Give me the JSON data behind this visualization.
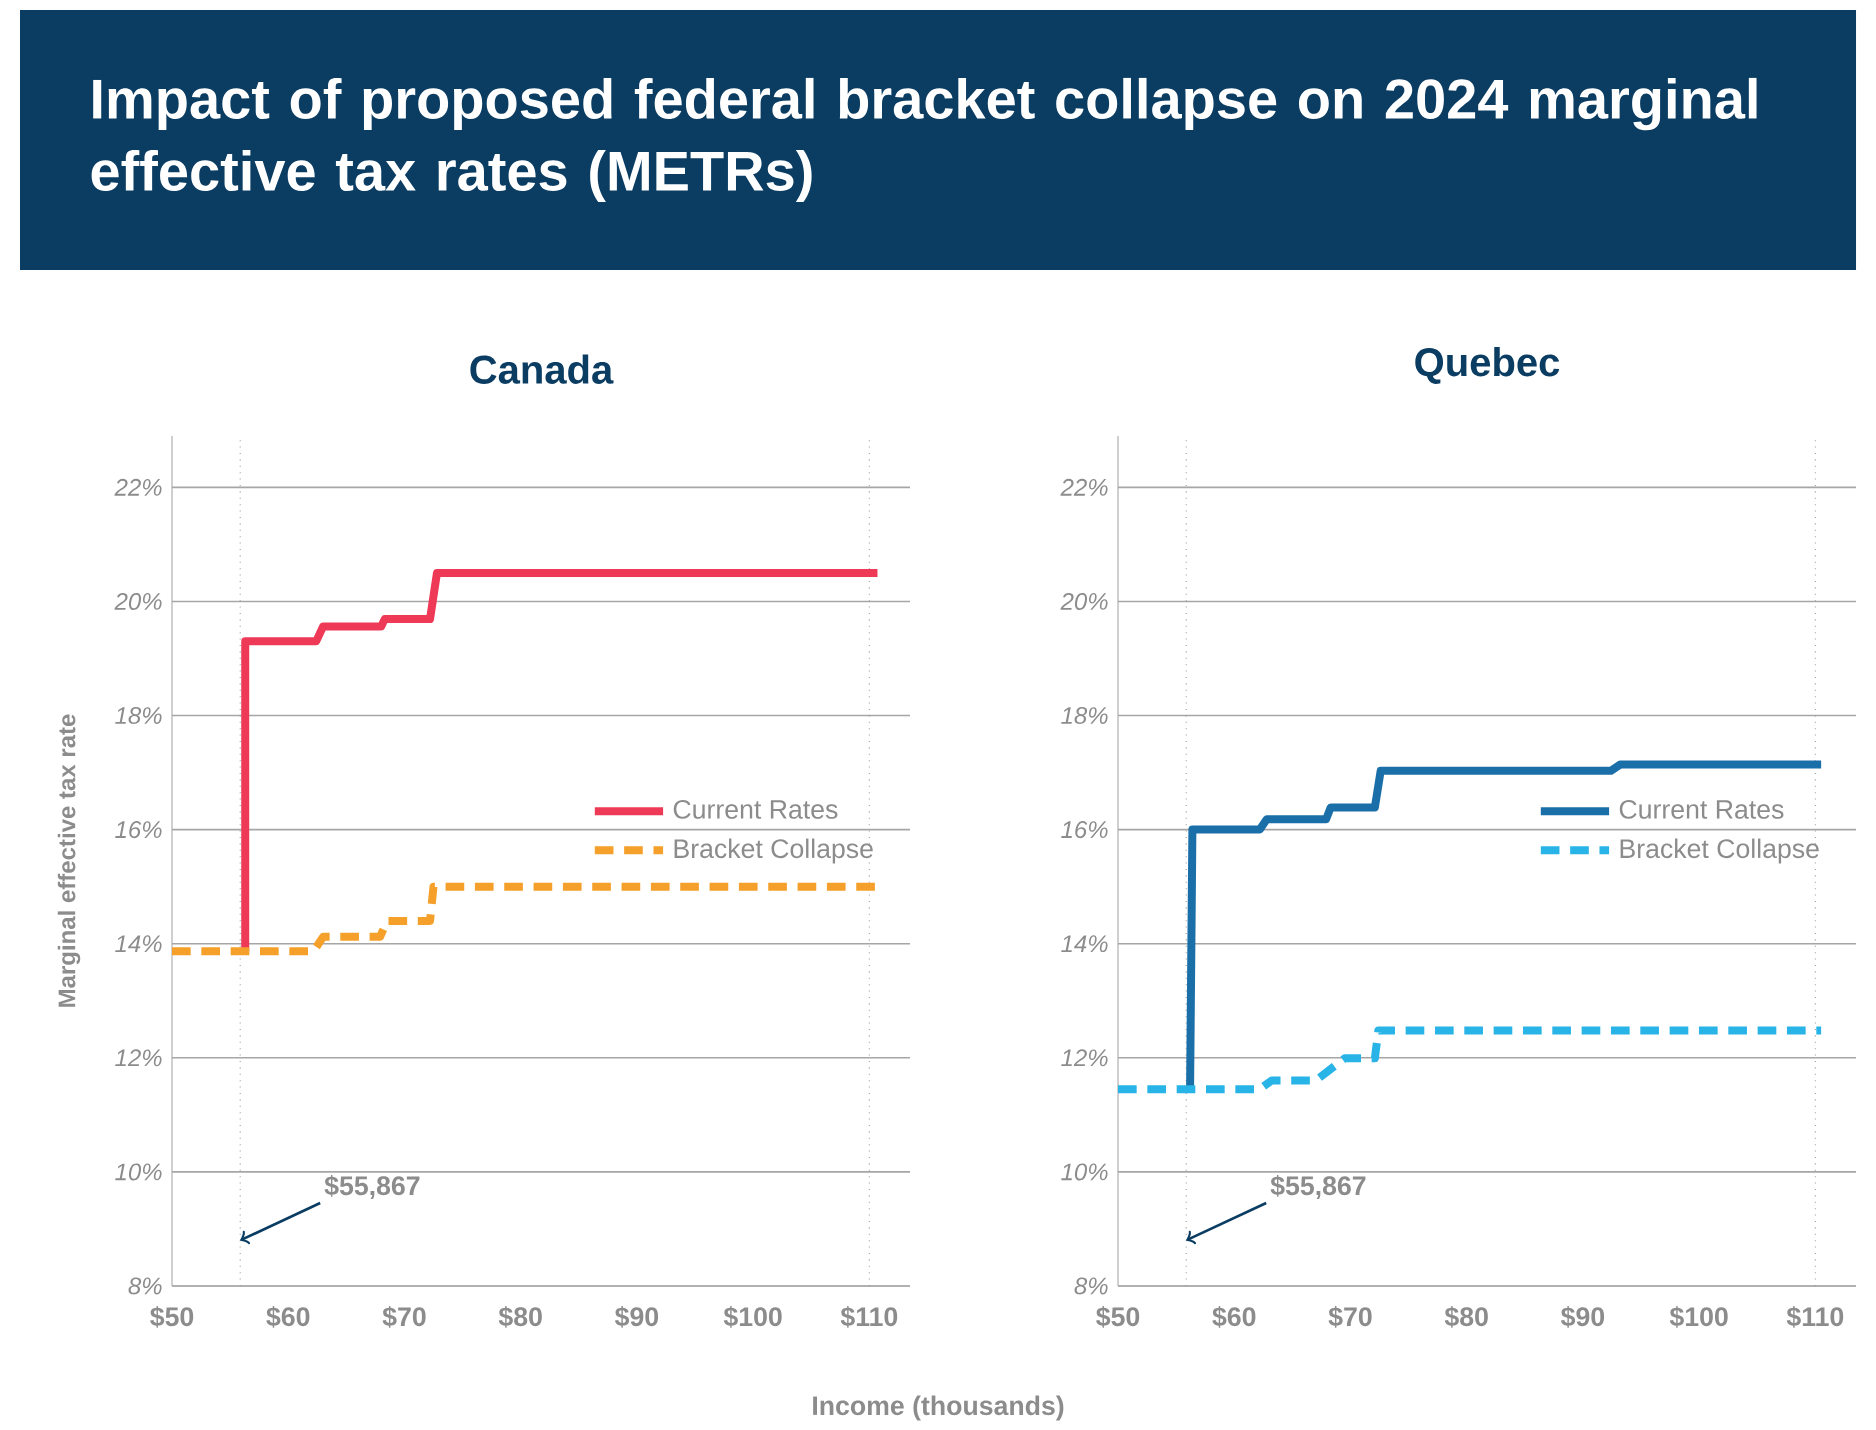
{
  "chart_data": [
    {
      "type": "line",
      "title": "Impact of proposed federal bracket collapse on 2024 marginal effective tax rates (METRs)",
      "subtitle": "Canada",
      "xlabel": "Income (thousands)",
      "ylabel": "Marginal effective tax rate",
      "xlim": [
        50,
        113.5
      ],
      "ylim": [
        8,
        22.9
      ],
      "xticks": [
        {
          "value": 50,
          "label": "$50"
        },
        {
          "value": 60,
          "label": "$60"
        },
        {
          "value": 70,
          "label": "$70"
        },
        {
          "value": 80,
          "label": "$80"
        },
        {
          "value": 90,
          "label": "$90"
        },
        {
          "value": 100,
          "label": "$100"
        },
        {
          "value": 110,
          "label": "$110"
        }
      ],
      "yticks": [
        {
          "value": 8,
          "label": "8%"
        },
        {
          "value": 10,
          "label": "10%"
        },
        {
          "value": 12,
          "label": "12%"
        },
        {
          "value": 14,
          "label": "14%"
        },
        {
          "value": 16,
          "label": "16%"
        },
        {
          "value": 18,
          "label": "18%"
        },
        {
          "value": 20,
          "label": "20%"
        },
        {
          "value": 22,
          "label": "22%"
        }
      ],
      "grid": "y",
      "legend": "right",
      "series": [
        {
          "name": "Current Rates",
          "color": "#ee3a56",
          "line_style": "solid",
          "x": [
            56.3,
            56.3,
            62.4,
            63,
            68,
            68.3,
            72.2,
            72.8,
            110.7
          ],
          "values": [
            13.87,
            19.3,
            19.3,
            19.56,
            19.56,
            19.69,
            19.69,
            20.5,
            20.5
          ]
        },
        {
          "name": "Bracket Collapse",
          "color": "#f5a02a",
          "line_style": "dashed",
          "x": [
            50,
            62.2,
            63,
            67.9,
            68.5,
            72.2,
            72.5,
            110.7
          ],
          "values": [
            13.87,
            13.87,
            14.12,
            14.12,
            14.4,
            14.4,
            15.0,
            15.0
          ]
        }
      ],
      "ref_lines": [
        {
          "axis": "x",
          "value": 55.867,
          "color": "#999999",
          "line_style": "dotted"
        },
        {
          "axis": "x",
          "value": 110,
          "color": "#999999",
          "line_style": "dotted"
        }
      ],
      "annotations": [
        {
          "text": "$55,867",
          "x": 55.867,
          "y": 8.8
        }
      ]
    },
    {
      "type": "line",
      "subtitle": "Quebec",
      "xlim": [
        50,
        113.5
      ],
      "ylim": [
        8,
        22.9
      ],
      "xticks": [
        {
          "value": 50,
          "label": "$50"
        },
        {
          "value": 60,
          "label": "$60"
        },
        {
          "value": 70,
          "label": "$70"
        },
        {
          "value": 80,
          "label": "$80"
        },
        {
          "value": 90,
          "label": "$90"
        },
        {
          "value": 100,
          "label": "$100"
        },
        {
          "value": 110,
          "label": "$110"
        }
      ],
      "yticks": [
        {
          "value": 8,
          "label": "8%"
        },
        {
          "value": 10,
          "label": "10%"
        },
        {
          "value": 12,
          "label": "12%"
        },
        {
          "value": 14,
          "label": "14%"
        },
        {
          "value": 16,
          "label": "16%"
        },
        {
          "value": 18,
          "label": "18%"
        },
        {
          "value": 20,
          "label": "20%"
        },
        {
          "value": 22,
          "label": "22%"
        }
      ],
      "grid": "y",
      "legend": "right",
      "series": [
        {
          "name": "Current Rates",
          "color": "#1b6fa8",
          "line_style": "solid",
          "x": [
            56.2,
            56.4,
            62.2,
            62.8,
            67.9,
            68.3,
            72.1,
            72.6,
            92.4,
            93.2,
            110.5
          ],
          "values": [
            11.45,
            16.0,
            16.0,
            16.18,
            16.18,
            16.39,
            16.39,
            17.03,
            17.03,
            17.14,
            17.14
          ]
        },
        {
          "name": "Bracket Collapse",
          "color": "#29b4e8",
          "line_style": "dashed",
          "x": [
            50,
            62.2,
            63.2,
            67,
            69.5,
            72.1,
            72.4,
            110.5
          ],
          "values": [
            11.45,
            11.45,
            11.6,
            11.6,
            11.99,
            11.99,
            12.48,
            12.48
          ]
        }
      ],
      "ref_lines": [
        {
          "axis": "x",
          "value": 55.867,
          "color": "#999999",
          "line_style": "dotted"
        },
        {
          "axis": "x",
          "value": 110,
          "color": "#999999",
          "line_style": "dotted"
        }
      ],
      "annotations": [
        {
          "text": "$55,867",
          "x": 55.867,
          "y": 8.8
        }
      ]
    }
  ]
}
